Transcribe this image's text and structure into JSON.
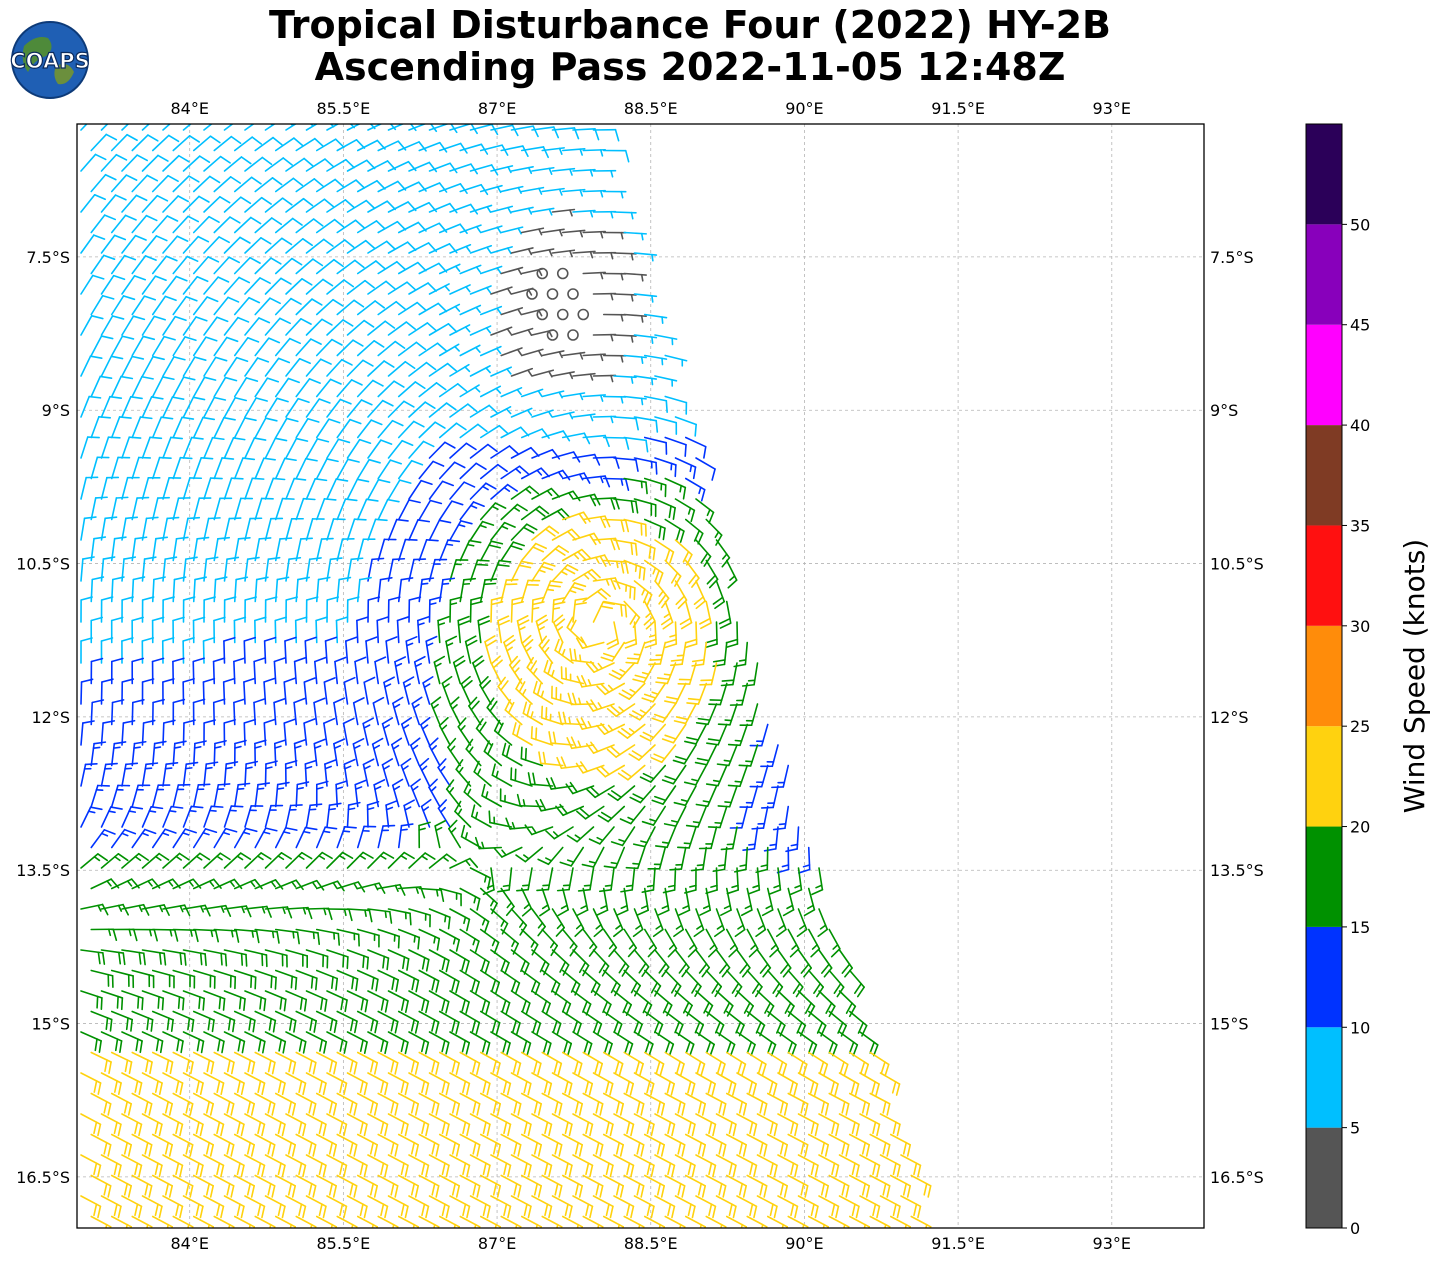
{
  "title": {
    "line1": "Tropical Disturbance Four (2022) HY-2B",
    "line2": "Ascending Pass 2022-11-05 12:48Z"
  },
  "logo": {
    "text": "COAPS"
  },
  "map": {
    "lon_range": [
      82.9,
      93.9
    ],
    "lat_range": [
      -17.0,
      -6.2
    ],
    "lon_ticks": [
      {
        "value": 84.0,
        "label": "84°E"
      },
      {
        "value": 85.5,
        "label": "85.5°E"
      },
      {
        "value": 87.0,
        "label": "87°E"
      },
      {
        "value": 88.5,
        "label": "88.5°E"
      },
      {
        "value": 90.0,
        "label": "90°E"
      },
      {
        "value": 91.5,
        "label": "91.5°E"
      },
      {
        "value": 93.0,
        "label": "93°E"
      }
    ],
    "lat_ticks": [
      {
        "value": -7.5,
        "label": "7.5°S"
      },
      {
        "value": -9.0,
        "label": "9°S"
      },
      {
        "value": -10.5,
        "label": "10.5°S"
      },
      {
        "value": -12.0,
        "label": "12°S"
      },
      {
        "value": -13.5,
        "label": "13.5°S"
      },
      {
        "value": -15.0,
        "label": "15°S"
      },
      {
        "value": -16.5,
        "label": "16.5°S"
      }
    ],
    "gridlines": true,
    "swath_corners_lonlat": [
      [
        82.9,
        -6.2
      ],
      [
        88.0,
        -6.2
      ],
      [
        91.2,
        -17.0
      ],
      [
        82.9,
        -17.0
      ]
    ],
    "circulation_center_lonlat": [
      88.0,
      -11.1
    ],
    "calm_center_lonlat": [
      87.6,
      -8.0
    ]
  },
  "colorbar": {
    "label": "Wind Speed (knots)",
    "bounds": [
      0,
      5,
      10,
      15,
      20,
      25,
      30,
      35,
      40,
      45,
      50,
      55
    ],
    "tick_labels": [
      "0",
      "5",
      "10",
      "15",
      "20",
      "25",
      "30",
      "35",
      "40",
      "45",
      "50"
    ],
    "colors": [
      "#555555",
      "#00bfff",
      "#0033ff",
      "#009100",
      "#ffd20f",
      "#ff8c0a",
      "#ff1010",
      "#7f3b24",
      "#ff00ff",
      "#8800bb",
      "#2b0059"
    ]
  }
}
